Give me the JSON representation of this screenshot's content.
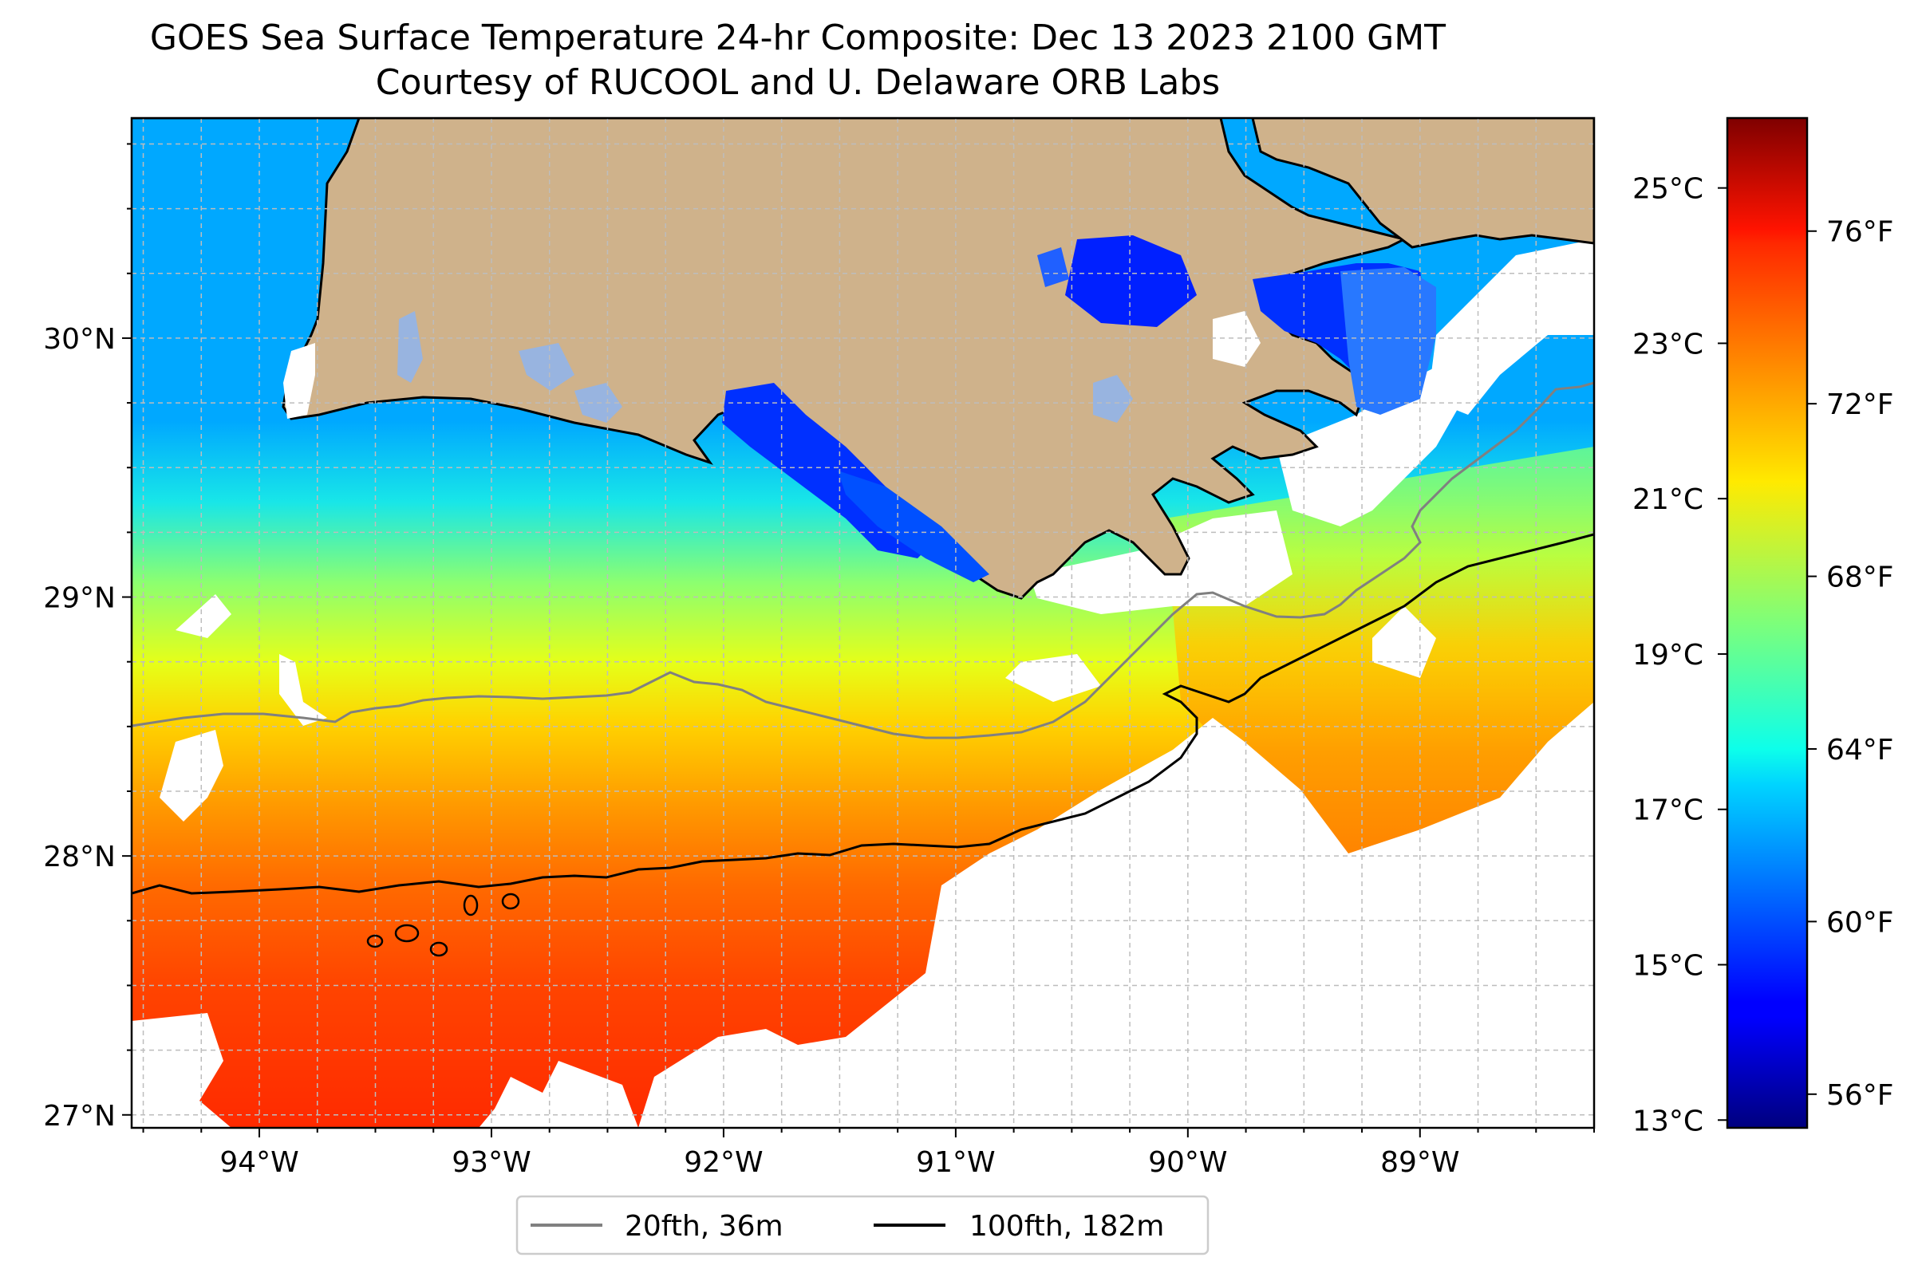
{
  "title": {
    "line1": "GOES Sea Surface Temperature 24-hr Composite: Dec 13 2023 2100 GMT",
    "line2": "Courtesy of RUCOOL and U. Delaware ORB Labs"
  },
  "map": {
    "lon_range": [
      -94.55,
      -88.25
    ],
    "lat_range": [
      26.95,
      30.85
    ],
    "lon_ticks": [
      {
        "value": -94,
        "label": "94°W"
      },
      {
        "value": -93,
        "label": "93°W"
      },
      {
        "value": -92,
        "label": "92°W"
      },
      {
        "value": -91,
        "label": "91°W"
      },
      {
        "value": -90,
        "label": "90°W"
      },
      {
        "value": -89,
        "label": "89°W"
      }
    ],
    "lat_ticks": [
      {
        "value": 27,
        "label": "27°N"
      },
      {
        "value": 28,
        "label": "28°N"
      },
      {
        "value": 29,
        "label": "29°N"
      },
      {
        "value": 30,
        "label": "30°N"
      }
    ],
    "colors": {
      "land": "#cfb28b",
      "coast": "#000000",
      "isobath_20fth": "#808080",
      "isobath_100fth": "#000000",
      "cloud_gap": "#ffffff",
      "lakes": "#98b4e0"
    }
  },
  "colorbar": {
    "celsius_range": [
      12.9,
      25.9
    ],
    "celsius_ticks": [
      {
        "value": 13,
        "label": "13°C"
      },
      {
        "value": 15,
        "label": "15°C"
      },
      {
        "value": 17,
        "label": "17°C"
      },
      {
        "value": 19,
        "label": "19°C"
      },
      {
        "value": 21,
        "label": "21°C"
      },
      {
        "value": 23,
        "label": "23°C"
      },
      {
        "value": 25,
        "label": "25°C"
      }
    ],
    "fahrenheit_ticks": [
      {
        "value": 56,
        "label": "56°F"
      },
      {
        "value": 60,
        "label": "60°F"
      },
      {
        "value": 64,
        "label": "64°F"
      },
      {
        "value": 68,
        "label": "68°F"
      },
      {
        "value": 72,
        "label": "72°F"
      },
      {
        "value": 76,
        "label": "76°F"
      }
    ],
    "colormap": "jet"
  },
  "legend": {
    "items": [
      {
        "label": "20fth, 36m",
        "color": "#808080"
      },
      {
        "label": "100fth, 182m",
        "color": "#000000"
      }
    ]
  }
}
